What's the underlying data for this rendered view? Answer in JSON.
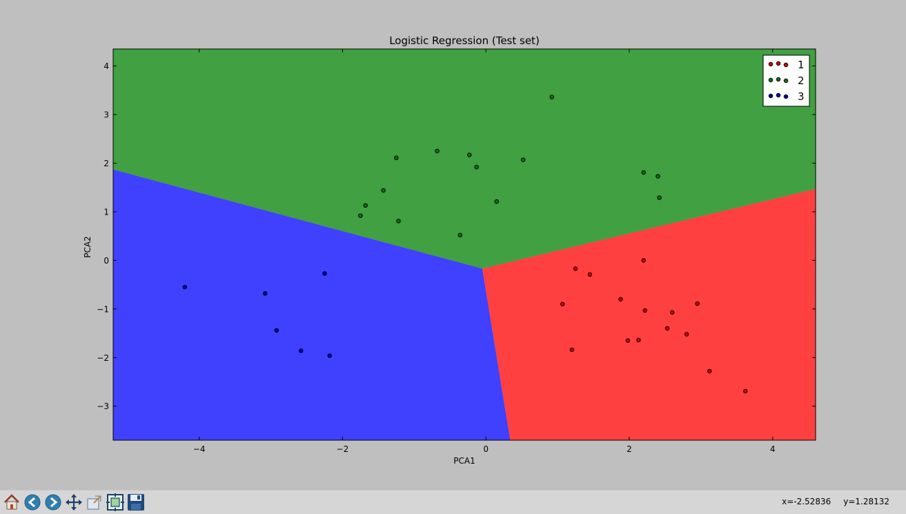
{
  "chart_data": {
    "type": "scatter",
    "title": "Logistic Regression (Test set)",
    "xlabel": "PCA1",
    "ylabel": "PCA2",
    "xlim": [
      -5.2,
      4.6
    ],
    "ylim": [
      -3.7,
      4.35
    ],
    "xticks": [
      -4,
      -2,
      0,
      2,
      4
    ],
    "yticks": [
      -3,
      -2,
      -1,
      0,
      1,
      2,
      3,
      4
    ],
    "xtick_labels": [
      "−4",
      "−2",
      "0",
      "2",
      "4"
    ],
    "ytick_labels": [
      "−3",
      "−2",
      "−1",
      "0",
      "1",
      "2",
      "3",
      "4"
    ],
    "grid": false,
    "legend_position": "top-right",
    "decision_regions": {
      "center": [
        -0.05,
        -0.17
      ],
      "boundary_endpoints": {
        "blue_green": [
          -5.2,
          1.87
        ],
        "green_red": [
          4.6,
          1.47
        ],
        "blue_red": [
          0.34,
          -3.7
        ]
      },
      "colors": {
        "1": "#ff4040",
        "2": "#41a041",
        "3": "#4040ff"
      }
    },
    "series": [
      {
        "name": "1",
        "color": "#cc0000",
        "points": [
          [
            2.2,
            0.0
          ],
          [
            1.25,
            -0.17
          ],
          [
            1.45,
            -0.29
          ],
          [
            1.07,
            -0.9
          ],
          [
            1.88,
            -0.8
          ],
          [
            2.22,
            -1.03
          ],
          [
            2.6,
            -1.07
          ],
          [
            2.95,
            -0.89
          ],
          [
            2.53,
            -1.4
          ],
          [
            2.8,
            -1.52
          ],
          [
            1.98,
            -1.65
          ],
          [
            2.13,
            -1.64
          ],
          [
            1.2,
            -1.84
          ],
          [
            3.12,
            -2.28
          ],
          [
            3.62,
            -2.69
          ]
        ]
      },
      {
        "name": "2",
        "color": "#1a6b1a",
        "points": [
          [
            0.92,
            3.36
          ],
          [
            -0.68,
            2.25
          ],
          [
            -0.23,
            2.17
          ],
          [
            -1.25,
            2.11
          ],
          [
            -0.13,
            1.92
          ],
          [
            0.52,
            2.07
          ],
          [
            2.2,
            1.81
          ],
          [
            2.4,
            1.73
          ],
          [
            -1.43,
            1.44
          ],
          [
            2.42,
            1.29
          ],
          [
            -1.68,
            1.13
          ],
          [
            0.15,
            1.21
          ],
          [
            -1.75,
            0.92
          ],
          [
            -1.22,
            0.81
          ],
          [
            -0.36,
            0.52
          ]
        ]
      },
      {
        "name": "3",
        "color": "#0000b0",
        "points": [
          [
            -4.2,
            -0.55
          ],
          [
            -2.25,
            -0.27
          ],
          [
            -3.08,
            -0.68
          ],
          [
            -2.92,
            -1.44
          ],
          [
            -2.58,
            -1.86
          ],
          [
            -2.18,
            -1.96
          ]
        ]
      }
    ]
  },
  "toolbar": {
    "items": [
      {
        "name": "home-button",
        "icon": "home-icon"
      },
      {
        "name": "back-button",
        "icon": "back-arrow-icon"
      },
      {
        "name": "forward-button",
        "icon": "forward-arrow-icon"
      },
      {
        "name": "pan-button",
        "icon": "pan-move-icon"
      },
      {
        "name": "zoom-button",
        "icon": "zoom-rect-icon"
      },
      {
        "name": "subplots-button",
        "icon": "configure-subplots-icon"
      },
      {
        "name": "save-button",
        "icon": "save-floppy-icon"
      }
    ],
    "coord_x": "x=-2.52836",
    "coord_y": "y=1.28132"
  }
}
